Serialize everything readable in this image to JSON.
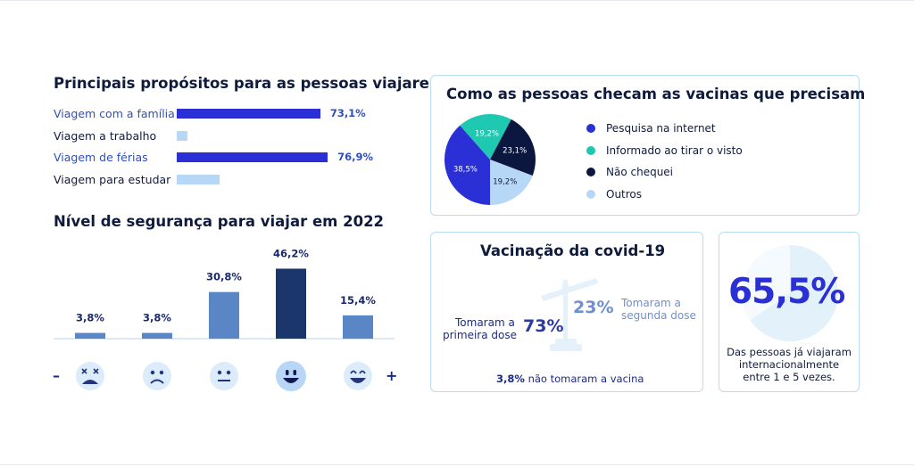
{
  "colors": {
    "dark_blue": "#2a2fd6",
    "light_blue": "#b7d7f6",
    "teal": "#1fc8b0",
    "navy": "#0c1740",
    "mid_blue": "#5b86c6",
    "deep_bar": "#1a366b",
    "face_bg": "#dcecfb"
  },
  "purposes": {
    "title": "Principais propósitos para as pessoas viajarem",
    "items": [
      {
        "label": "Viagem com a família",
        "value": 73.1,
        "value_label": "73,1%",
        "highlight": true
      },
      {
        "label": "Viagem a trabalho",
        "value": 5.5,
        "value_label": "",
        "highlight": false
      },
      {
        "label": "Viagem de férias",
        "value": 76.9,
        "value_label": "76,9%",
        "highlight": true
      },
      {
        "label": "Viagem para estudar",
        "value": 22,
        "value_label": "",
        "highlight": false
      }
    ]
  },
  "safety": {
    "title": "Nível de segurança para viajar em 2022",
    "minus": "–",
    "plus": "+",
    "faces": [
      "dizzy-face-icon",
      "sad-face-icon",
      "neutral-face-icon",
      "smile-face-icon",
      "grin-face-icon"
    ]
  },
  "vaccine_check": {
    "title": "Como as pessoas checam as vacinas que precisam",
    "legend": [
      "Pesquisa na internet",
      "Informado ao tirar o visto",
      "Não chequei",
      "Outros"
    ]
  },
  "covid": {
    "title": "Vacinação da covid-19",
    "first_dose_pct": "73%",
    "first_dose_label_1": "Tomaram a",
    "first_dose_label_2": "primeira dose",
    "second_dose_pct": "23%",
    "second_dose_label_1": "Tomaram a",
    "second_dose_label_2": "segunda dose",
    "no_vaccine_pct": "3,8%",
    "no_vaccine_text": "não tomaram a vacina"
  },
  "international": {
    "value": "65,5%",
    "fraction": 0.655,
    "line1": "Das pessoas já viajaram",
    "line2": "internacionalmente",
    "line3": "entre 1 e 5 vezes."
  },
  "chart_data": [
    {
      "type": "bar",
      "title": "Principais propósitos para as pessoas viajarem",
      "orientation": "horizontal",
      "categories": [
        "Viagem com a família",
        "Viagem a trabalho",
        "Viagem de férias",
        "Viagem para estudar"
      ],
      "values": [
        73.1,
        5.5,
        76.9,
        22
      ],
      "grid": false
    },
    {
      "type": "bar",
      "title": "Nível de segurança para viajar em 2022",
      "categories": [
        "1",
        "2",
        "3",
        "4",
        "5"
      ],
      "values": [
        3.8,
        3.8,
        30.8,
        46.2,
        15.4
      ],
      "value_labels": [
        "3,8%",
        "3,8%",
        "30,8%",
        "46,2%",
        "15,4%"
      ],
      "ylim": [
        0,
        50
      ],
      "grid": false
    },
    {
      "type": "pie",
      "title": "Como as pessoas checam as vacinas que precisam",
      "categories": [
        "Pesquisa na internet",
        "Informado ao tirar o visto",
        "Não chequei",
        "Outros"
      ],
      "values": [
        38.5,
        19.2,
        23.1,
        19.2
      ],
      "value_labels": [
        "38,5%",
        "19,2%",
        "23,1%",
        "19,2%"
      ],
      "legend": "right"
    }
  ]
}
